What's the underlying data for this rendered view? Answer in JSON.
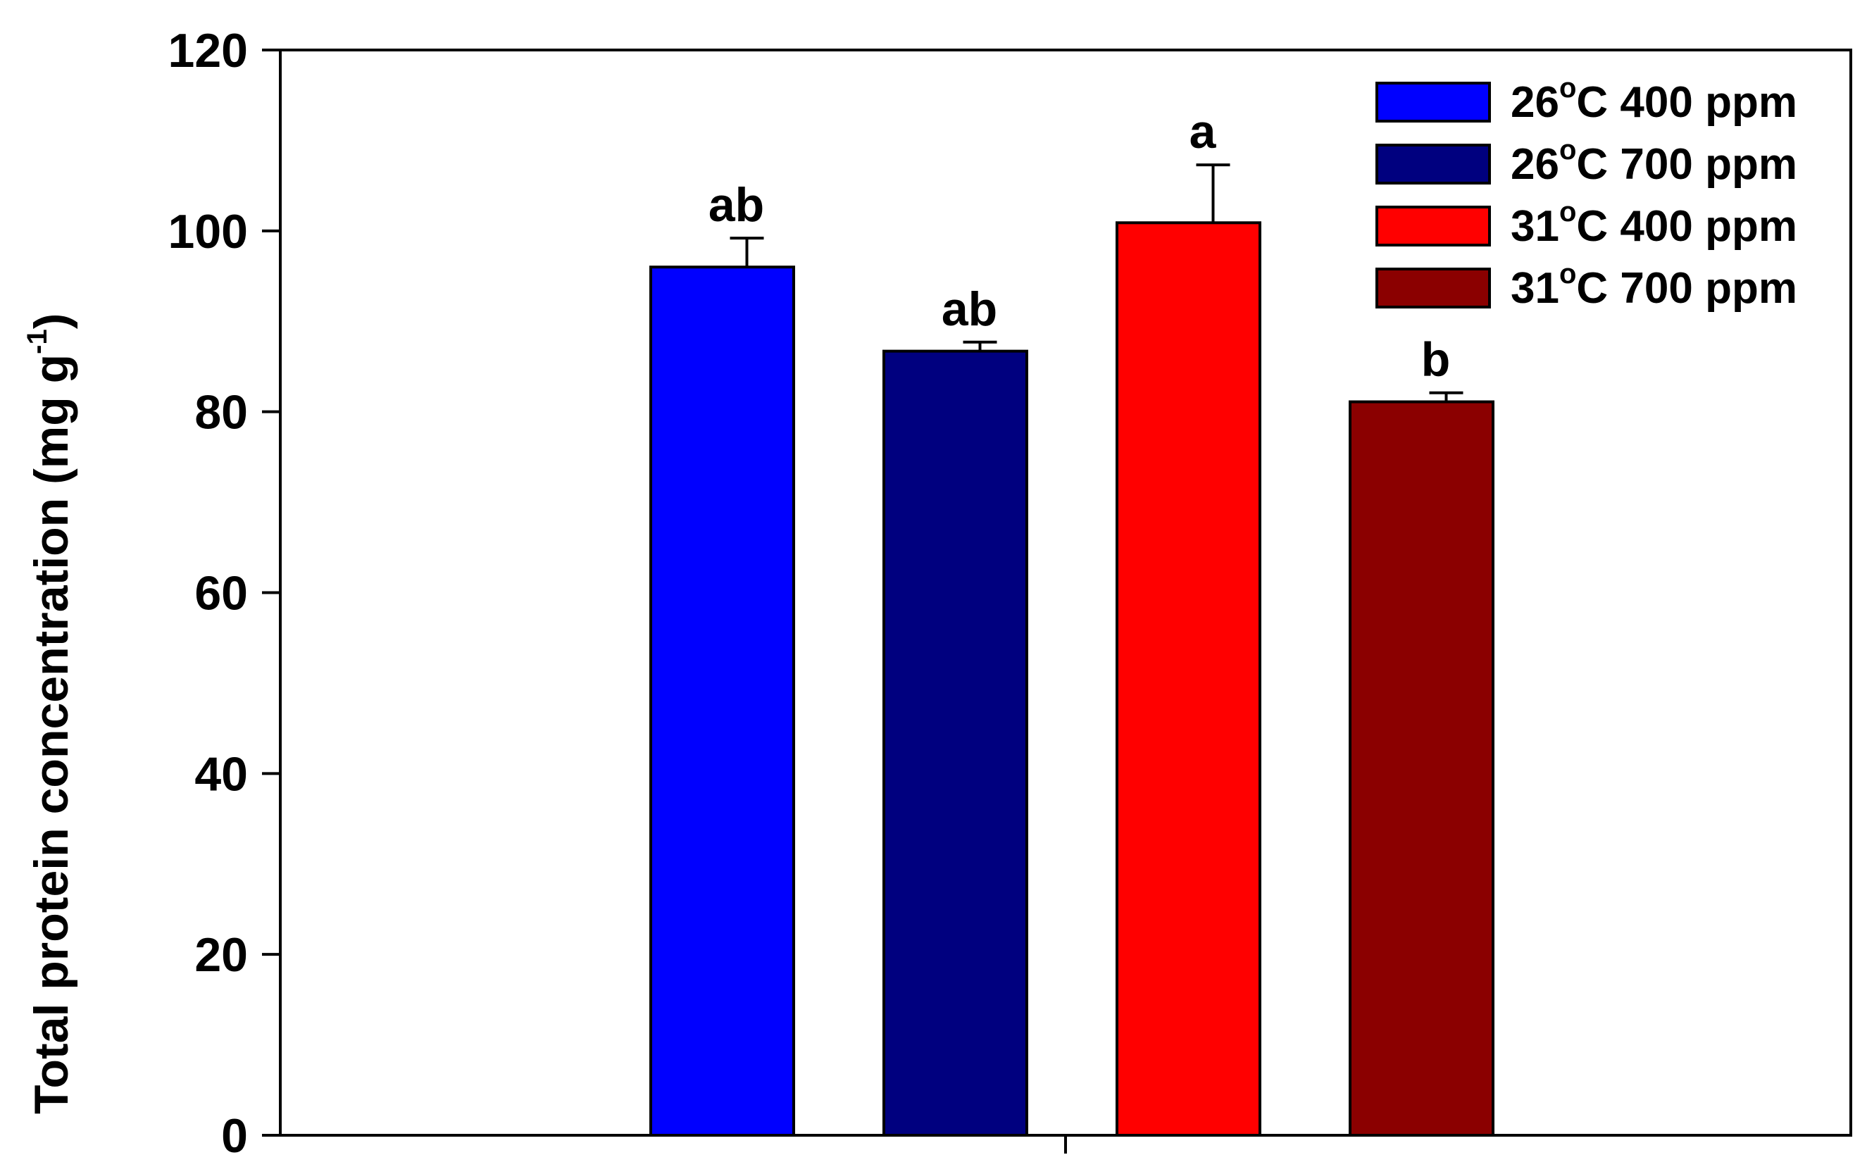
{
  "chart_data": {
    "type": "bar",
    "title": "",
    "xlabel": "",
    "ylabel": "Total protein concentration (mg g",
    "ylabel_superscript": "-1",
    "ylabel_close": ")",
    "ylim": [
      0,
      120
    ],
    "yticks": [
      "0",
      "20",
      "40",
      "60",
      "80",
      "100",
      "120"
    ],
    "grid": false,
    "legend_position": "top-right",
    "series": [
      {
        "name": "26",
        "name_sup": "o",
        "name_rest": "C 400 ppm",
        "value": 96,
        "error": 3.2,
        "color": "#0000FF",
        "significance": "ab"
      },
      {
        "name": "26",
        "name_sup": "o",
        "name_rest": "C 700 ppm",
        "value": 86.7,
        "error": 1.0,
        "color": "#00007F",
        "significance": "ab"
      },
      {
        "name": "31",
        "name_sup": "o",
        "name_rest": "C 400 ppm",
        "value": 100.9,
        "error": 6.4,
        "color": "#FF0000",
        "significance": "a"
      },
      {
        "name": "31",
        "name_sup": "o",
        "name_rest": "C 700 ppm",
        "value": 81.1,
        "error": 1.0,
        "color": "#8B0000",
        "significance": "b"
      }
    ]
  }
}
